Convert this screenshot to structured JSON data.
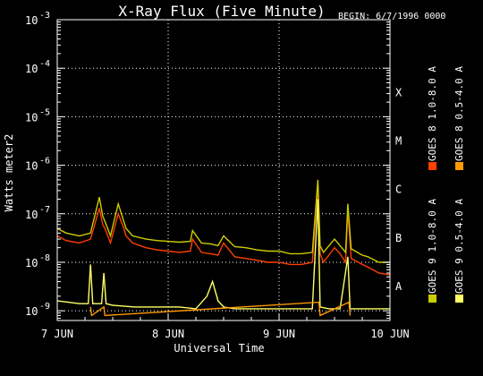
{
  "chart_data": {
    "type": "line",
    "title": "X-Ray Flux (Five Minute)",
    "begin_label": "BEGIN: 6/7/1996 0000",
    "xlabel": "Universal Time",
    "ylabel": "Watts meter2",
    "x_ticks": [
      "7 JUN",
      "8 JUN",
      "9 JUN",
      "10 JUN"
    ],
    "x_range_days": [
      0,
      3
    ],
    "y_scale": "log",
    "y_ticks": [
      {
        "base": "10",
        "exp": "-3"
      },
      {
        "base": "10",
        "exp": "-4"
      },
      {
        "base": "10",
        "exp": "-5"
      },
      {
        "base": "10",
        "exp": "-6"
      },
      {
        "base": "10",
        "exp": "-7"
      },
      {
        "base": "10",
        "exp": "-8"
      },
      {
        "base": "10",
        "exp": "-9"
      }
    ],
    "ylim_exp": [
      -9.2,
      -3
    ],
    "flare_classes": [
      {
        "label": "X",
        "exp": -4
      },
      {
        "label": "M",
        "exp": -5
      },
      {
        "label": "C",
        "exp": -6
      },
      {
        "label": "B",
        "exp": -7
      },
      {
        "label": "A",
        "exp": -8
      }
    ],
    "grid": "dotted",
    "legend": [
      {
        "label": "GOES 8 1.0-8.0 A",
        "color": "#ff4000"
      },
      {
        "label": "GOES 8 0.5-4.0 A",
        "color": "#ff9900"
      },
      {
        "label": "GOES 9 1.0-8.0 A",
        "color": "#cccc00"
      },
      {
        "label": "GOES 9 0.5-4.0 A",
        "color": "#ffff66"
      }
    ],
    "series": [
      {
        "name": "GOES 8 1.0-8.0 A",
        "color": "#ff4000",
        "x": [
          0,
          0.08,
          0.2,
          0.3,
          0.38,
          0.41,
          0.43,
          0.48,
          0.55,
          0.6,
          0.62,
          0.68,
          0.8,
          0.9,
          1.0,
          1.1,
          1.2,
          1.22,
          1.3,
          1.38,
          1.45,
          1.5,
          1.6,
          1.7,
          1.8,
          1.9,
          2.0,
          2.1,
          2.2,
          2.3,
          2.35,
          2.37,
          2.4,
          2.5,
          2.55,
          2.6,
          2.62,
          2.65,
          2.75,
          2.8,
          2.9,
          3.0
        ],
        "y": [
          3.5e-08,
          2.8e-08,
          2.5e-08,
          3e-08,
          1.3e-07,
          6e-08,
          5e-08,
          2.5e-08,
          1e-07,
          5e-08,
          3.5e-08,
          2.5e-08,
          2e-08,
          1.8e-08,
          1.7e-08,
          1.6e-08,
          1.7e-08,
          3e-08,
          1.6e-08,
          1.5e-08,
          1.4e-08,
          2.5e-08,
          1.3e-08,
          1.2e-08,
          1.1e-08,
          1e-08,
          1e-08,
          9e-09,
          9e-09,
          1e-08,
          4e-07,
          1.5e-08,
          1e-08,
          2e-08,
          1.5e-08,
          1e-08,
          1.2e-07,
          1.2e-08,
          9e-09,
          8e-09,
          6e-09,
          5.5e-09
        ]
      },
      {
        "name": "GOES 9 1.0-8.0 A",
        "color": "#cccc00",
        "x": [
          0,
          0.08,
          0.2,
          0.3,
          0.38,
          0.41,
          0.43,
          0.48,
          0.55,
          0.6,
          0.62,
          0.68,
          0.8,
          0.9,
          1.0,
          1.1,
          1.2,
          1.22,
          1.3,
          1.38,
          1.45,
          1.5,
          1.6,
          1.7,
          1.8,
          1.9,
          2.0,
          2.1,
          2.2,
          2.3,
          2.35,
          2.37,
          2.4,
          2.5,
          2.55,
          2.6,
          2.62,
          2.65,
          2.75,
          2.8,
          2.9,
          3.0
        ],
        "y": [
          5e-08,
          4e-08,
          3.5e-08,
          4e-08,
          2.2e-07,
          9e-08,
          7e-08,
          3.5e-08,
          1.6e-07,
          7e-08,
          5e-08,
          3.5e-08,
          3e-08,
          2.8e-08,
          2.7e-08,
          2.6e-08,
          2.7e-08,
          4.5e-08,
          2.5e-08,
          2.4e-08,
          2.2e-08,
          3.5e-08,
          2.1e-08,
          2e-08,
          1.8e-08,
          1.7e-08,
          1.7e-08,
          1.5e-08,
          1.5e-08,
          1.6e-08,
          5e-07,
          2.2e-08,
          1.6e-08,
          3e-08,
          2.2e-08,
          1.6e-08,
          1.6e-07,
          1.9e-08,
          1.4e-08,
          1.3e-08,
          1e-08,
          1e-08
        ]
      },
      {
        "name": "GOES 9 0.5-4.0 A",
        "color": "#ffff66",
        "x": [
          0,
          0.1,
          0.2,
          0.28,
          0.3,
          0.32,
          0.4,
          0.42,
          0.44,
          0.5,
          0.7,
          0.9,
          1.1,
          1.25,
          1.35,
          1.4,
          1.45,
          1.5,
          1.6,
          1.8,
          2.0,
          2.2,
          2.3,
          2.35,
          2.37,
          2.45,
          2.55,
          2.62,
          2.64,
          2.7,
          2.8,
          3.0
        ],
        "y": [
          1.6e-09,
          1.5e-09,
          1.4e-09,
          1.4e-09,
          9e-09,
          1.4e-09,
          1.4e-09,
          6e-09,
          1.4e-09,
          1.3e-09,
          1.2e-09,
          1.2e-09,
          1.2e-09,
          1.1e-09,
          2e-09,
          4e-09,
          1.6e-09,
          1.2e-09,
          1.1e-09,
          1.1e-09,
          1.1e-09,
          1.1e-09,
          1.1e-09,
          2e-07,
          1.2e-09,
          1.1e-09,
          1.1e-09,
          1.3e-08,
          1.1e-09,
          1.1e-09,
          1.1e-09,
          1.1e-09
        ]
      },
      {
        "name": "GOES 8 0.5-4.0 A",
        "color": "#ff9900",
        "x": [
          0.3,
          0.31,
          0.42,
          0.43,
          2.36,
          2.37,
          2.63,
          2.64
        ],
        "y": [
          1.2e-09,
          8e-10,
          1.2e-09,
          8e-10,
          1.5e-09,
          8e-10,
          1.5e-09,
          8e-10
        ]
      }
    ]
  }
}
